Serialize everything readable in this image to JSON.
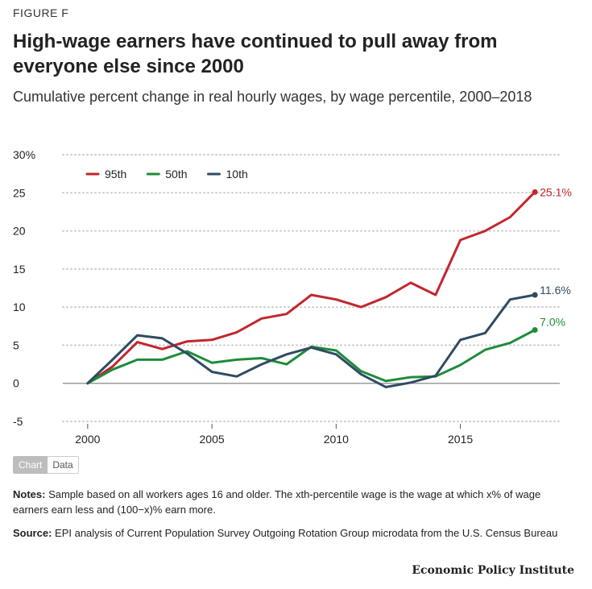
{
  "figure_label": "FIGURE F",
  "title": "High-wage earners have continued to pull away from everyone else since 2000",
  "subtitle": "Cumulative percent change in real hourly wages, by wage percentile, 2000–2018",
  "tabs": {
    "chart": "Chart",
    "data": "Data"
  },
  "notes": {
    "label": "Notes:",
    "text": " Sample based on all workers ages 16 and older. The xth-percentile wage is the wage at which x% of wage earners earn less and (100−x)% earn more."
  },
  "source": {
    "label": "Source:",
    "text": " EPI analysis of Current Population Survey Outgoing Rotation Group microdata from the U.S. Census Bureau"
  },
  "brand": "Economic Policy Institute",
  "colors": {
    "p95": "#c1272d",
    "p50": "#1e8c3a",
    "p10": "#2f4b63",
    "zero_line": "#8a8a8a",
    "grid": "#cccccc"
  },
  "chart_data": {
    "type": "line",
    "title": "Cumulative percent change in real hourly wages, by wage percentile, 2000–2018",
    "xlabel": "",
    "ylabel": "",
    "x": [
      2000,
      2001,
      2002,
      2003,
      2004,
      2005,
      2006,
      2007,
      2008,
      2009,
      2010,
      2011,
      2012,
      2013,
      2014,
      2015,
      2016,
      2017,
      2018
    ],
    "xticks": [
      2000,
      2005,
      2010,
      2015
    ],
    "xtick_labels": [
      "2000",
      "2005",
      "2010",
      "2015"
    ],
    "xlim": [
      1999,
      2019
    ],
    "ylim": [
      -5,
      30
    ],
    "yticks": [
      -5,
      0,
      5,
      10,
      15,
      20,
      25,
      30
    ],
    "ytick_labels": [
      "-5",
      "0",
      "5",
      "10",
      "15",
      "20",
      "25",
      "30%"
    ],
    "grid": true,
    "legend_position": "top-left",
    "series": [
      {
        "name": "95th",
        "key": "p95",
        "end_label": "25.1%",
        "values": [
          0,
          2.2,
          5.4,
          4.5,
          5.5,
          5.7,
          6.7,
          8.5,
          9.1,
          11.6,
          11.0,
          10.0,
          11.3,
          13.2,
          11.6,
          18.8,
          20.0,
          21.8,
          25.1
        ]
      },
      {
        "name": "50th",
        "key": "p50",
        "end_label": "7.0%",
        "values": [
          0,
          1.8,
          3.1,
          3.1,
          4.2,
          2.7,
          3.1,
          3.3,
          2.5,
          4.8,
          4.3,
          1.6,
          0.3,
          0.8,
          0.9,
          2.4,
          4.4,
          5.3,
          7.0
        ]
      },
      {
        "name": "10th",
        "key": "p10",
        "end_label": "11.6%",
        "values": [
          0,
          3.1,
          6.3,
          5.9,
          3.9,
          1.5,
          0.9,
          2.5,
          3.8,
          4.7,
          3.8,
          1.2,
          -0.5,
          0.1,
          1.0,
          5.7,
          6.6,
          11.0,
          11.6
        ]
      }
    ]
  }
}
